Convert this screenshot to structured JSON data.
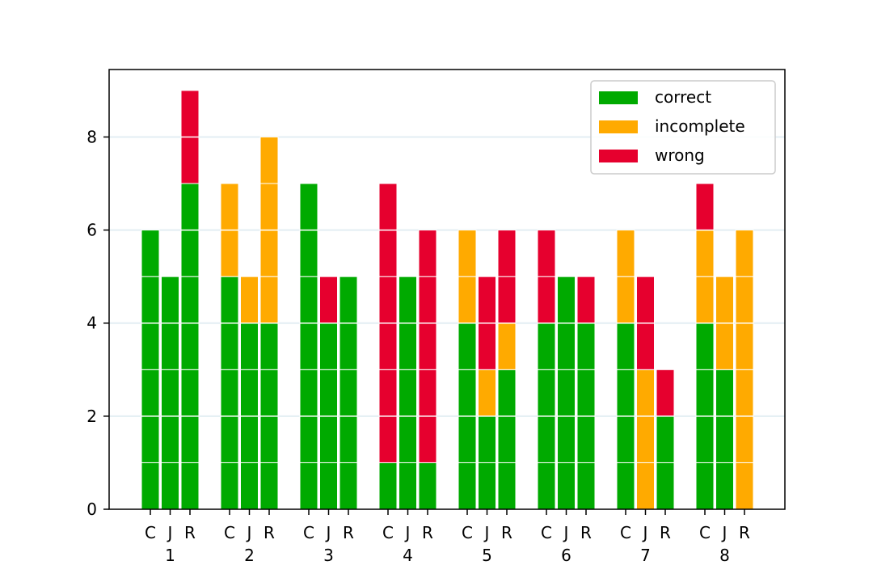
{
  "chart_data": {
    "type": "bar",
    "stacked": true,
    "categories": [
      "1",
      "2",
      "3",
      "4",
      "5",
      "6",
      "7",
      "8"
    ],
    "sub_categories": [
      "C",
      "J",
      "R"
    ],
    "series": [
      {
        "name": "correct",
        "color": "#00aa00",
        "values": [
          [
            6,
            5,
            7
          ],
          [
            5,
            4,
            4
          ],
          [
            7,
            4,
            5
          ],
          [
            1,
            5,
            1
          ],
          [
            4,
            2,
            3
          ],
          [
            4,
            5,
            4
          ],
          [
            4,
            0,
            2
          ],
          [
            4,
            3,
            0
          ]
        ]
      },
      {
        "name": "incomplete",
        "color": "#ffaa00",
        "values": [
          [
            0,
            0,
            0
          ],
          [
            2,
            1,
            4
          ],
          [
            0,
            0,
            0
          ],
          [
            0,
            0,
            0
          ],
          [
            2,
            1,
            1
          ],
          [
            0,
            0,
            0
          ],
          [
            2,
            3,
            0
          ],
          [
            2,
            2,
            6
          ]
        ]
      },
      {
        "name": "wrong",
        "color": "#e6002e",
        "values": [
          [
            0,
            0,
            2
          ],
          [
            0,
            0,
            0
          ],
          [
            0,
            1,
            0
          ],
          [
            6,
            0,
            5
          ],
          [
            0,
            2,
            2
          ],
          [
            2,
            0,
            1
          ],
          [
            0,
            2,
            1
          ],
          [
            1,
            0,
            0
          ]
        ]
      }
    ],
    "ylim": [
      0,
      9.45
    ],
    "yticks": [
      0,
      2,
      4,
      6,
      8
    ],
    "grid": "y",
    "legend_position": "top-right",
    "title": "",
    "xlabel": "",
    "ylabel": ""
  }
}
